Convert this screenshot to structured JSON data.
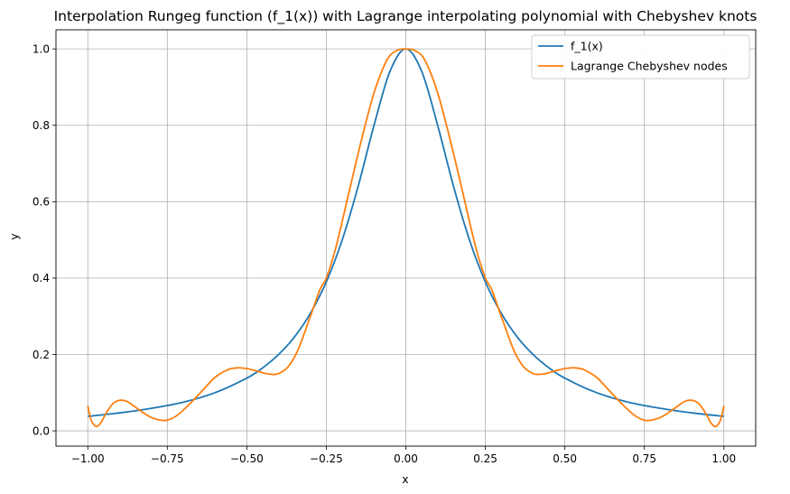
{
  "chart_data": {
    "type": "line",
    "title": "Interpolation Rungeg function (f_1(x)) with Lagrange interpolating polynomial with Chebyshev knots",
    "xlabel": "x",
    "ylabel": "y",
    "xlim": [
      -1.1,
      1.1
    ],
    "ylim": [
      -0.04,
      1.05
    ],
    "xticks": [
      -1.0,
      -0.75,
      -0.5,
      -0.25,
      0.0,
      0.25,
      0.5,
      0.75,
      1.0
    ],
    "xtick_labels": [
      "−1.00",
      "−0.75",
      "−0.50",
      "−0.25",
      "0.00",
      "0.25",
      "0.50",
      "0.75",
      "1.00"
    ],
    "yticks": [
      0.0,
      0.2,
      0.4,
      0.6,
      0.8,
      1.0
    ],
    "ytick_labels": [
      "0.0",
      "0.2",
      "0.4",
      "0.6",
      "0.8",
      "1.0"
    ],
    "grid": true,
    "legend_position": "top-right",
    "series": [
      {
        "name": "f_1(x)",
        "color": "#1f77b4",
        "x": [
          -1.0,
          -0.9,
          -0.8,
          -0.7,
          -0.6,
          -0.5,
          -0.45,
          -0.4,
          -0.35,
          -0.3,
          -0.25,
          -0.2,
          -0.15,
          -0.1,
          -0.05,
          0.0,
          0.05,
          0.1,
          0.15,
          0.2,
          0.25,
          0.3,
          0.35,
          0.4,
          0.45,
          0.5,
          0.6,
          0.7,
          0.8,
          0.9,
          1.0
        ],
        "y": [
          0.038,
          0.047,
          0.059,
          0.075,
          0.1,
          0.138,
          0.165,
          0.2,
          0.246,
          0.308,
          0.39,
          0.5,
          0.64,
          0.8,
          0.941,
          1.0,
          0.941,
          0.8,
          0.64,
          0.5,
          0.39,
          0.308,
          0.246,
          0.2,
          0.165,
          0.138,
          0.1,
          0.075,
          0.059,
          0.047,
          0.038
        ]
      },
      {
        "name": "Lagrange Chebyshev nodes",
        "color": "#ff7f0e",
        "x": [
          -1.0,
          -0.99,
          -0.975,
          -0.96,
          -0.94,
          -0.92,
          -0.9,
          -0.88,
          -0.86,
          -0.83,
          -0.8,
          -0.77,
          -0.75,
          -0.72,
          -0.68,
          -0.64,
          -0.6,
          -0.56,
          -0.53,
          -0.5,
          -0.47,
          -0.44,
          -0.42,
          -0.4,
          -0.37,
          -0.34,
          -0.3,
          -0.27,
          -0.25,
          -0.22,
          -0.18,
          -0.14,
          -0.1,
          -0.06,
          -0.03,
          0.0,
          0.03,
          0.06,
          0.1,
          0.14,
          0.18,
          0.22,
          0.25,
          0.27,
          0.3,
          0.34,
          0.37,
          0.4,
          0.42,
          0.44,
          0.47,
          0.5,
          0.53,
          0.56,
          0.6,
          0.64,
          0.68,
          0.72,
          0.75,
          0.77,
          0.8,
          0.83,
          0.86,
          0.88,
          0.9,
          0.92,
          0.94,
          0.96,
          0.975,
          0.99,
          1.0
        ],
        "y": [
          0.066,
          0.03,
          0.012,
          0.02,
          0.05,
          0.072,
          0.08,
          0.078,
          0.068,
          0.05,
          0.035,
          0.028,
          0.028,
          0.04,
          0.07,
          0.105,
          0.14,
          0.16,
          0.165,
          0.163,
          0.157,
          0.15,
          0.148,
          0.15,
          0.168,
          0.21,
          0.3,
          0.37,
          0.4,
          0.48,
          0.62,
          0.76,
          0.885,
          0.97,
          0.995,
          1.0,
          0.995,
          0.97,
          0.885,
          0.76,
          0.62,
          0.48,
          0.4,
          0.37,
          0.3,
          0.21,
          0.168,
          0.15,
          0.148,
          0.15,
          0.157,
          0.163,
          0.165,
          0.16,
          0.14,
          0.105,
          0.07,
          0.04,
          0.028,
          0.028,
          0.035,
          0.05,
          0.068,
          0.078,
          0.08,
          0.072,
          0.05,
          0.02,
          0.012,
          0.03,
          0.066
        ]
      }
    ]
  }
}
